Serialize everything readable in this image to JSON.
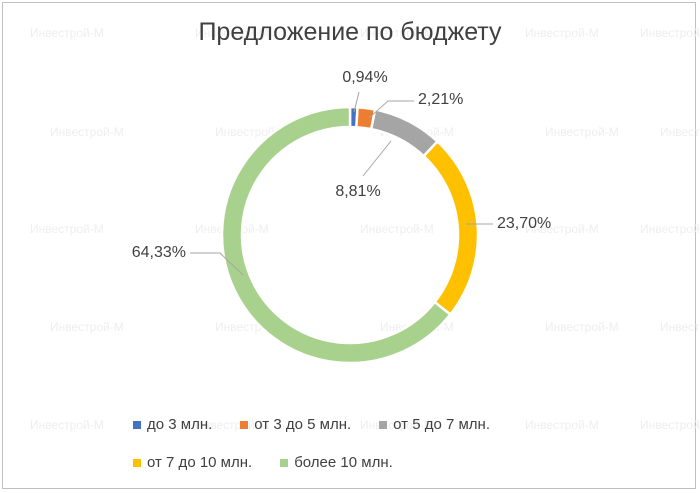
{
  "watermark": "Инвестрой-М",
  "chart_data": {
    "type": "pie",
    "title": "Предложение по бюджету",
    "donut": true,
    "legend_position": "bottom",
    "categories": [
      "до 3 млн.",
      "от 3 до 5 млн.",
      "от 5 до 7 млн.",
      "от 7 до 10 млн.",
      "более 10 млн."
    ],
    "values": [
      0.94,
      2.21,
      8.81,
      23.7,
      64.33
    ],
    "data_labels": [
      "0,94%",
      "2,21%",
      "8,81%",
      "23,70%",
      "64,33%"
    ],
    "colors": [
      "#4472c4",
      "#ed7d31",
      "#a5a5a5",
      "#ffc000",
      "#a9d18e"
    ]
  }
}
